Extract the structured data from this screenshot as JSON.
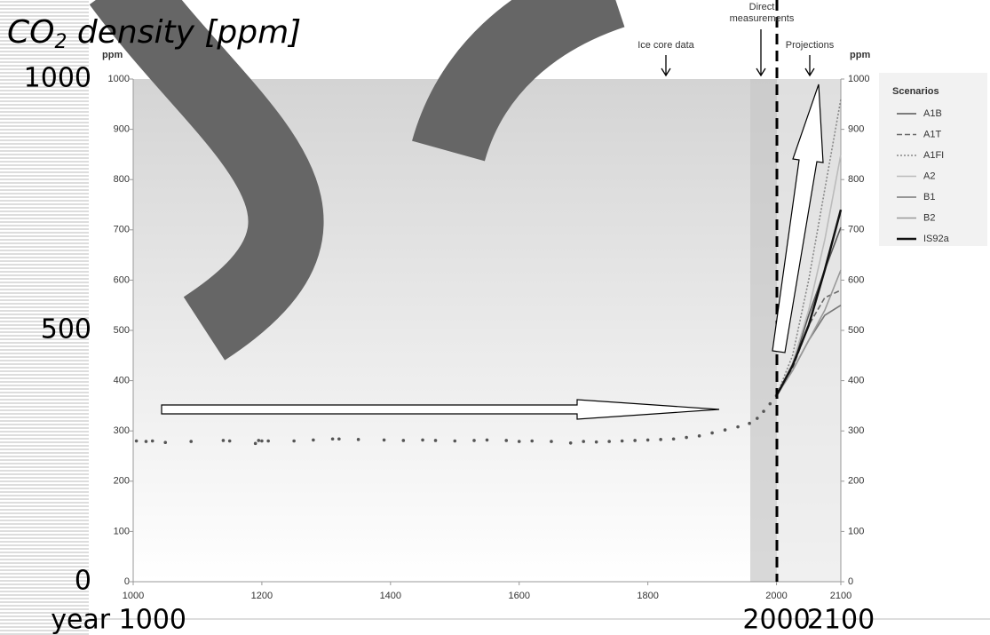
{
  "chart_data": {
    "type": "line",
    "title_parts": [
      "CO",
      "2",
      " density [ppm]"
    ],
    "unit_left": "ppm",
    "unit_right": "ppm",
    "annotations": {
      "ice_core": "Ice core data",
      "direct": [
        "Direct",
        "measurements"
      ],
      "projections": "Projections"
    },
    "legend_title": "Scenarios",
    "xlim": [
      1000,
      2100
    ],
    "ylim": [
      0,
      1000
    ],
    "xticks": [
      1000,
      1200,
      1400,
      1600,
      1800,
      2000,
      2100
    ],
    "yticks": [
      0,
      100,
      200,
      300,
      400,
      500,
      600,
      700,
      800,
      900,
      1000
    ],
    "overlay_yticks": [
      1000,
      500,
      0
    ],
    "overlay_xticks": [
      {
        "value": 1000,
        "label": "year 1000"
      },
      2000,
      2100
    ],
    "observations": {
      "color": "#555555",
      "x": [
        1005,
        1020,
        1030,
        1050,
        1090,
        1140,
        1150,
        1190,
        1195,
        1200,
        1210,
        1250,
        1280,
        1310,
        1320,
        1350,
        1390,
        1420,
        1450,
        1470,
        1500,
        1530,
        1550,
        1580,
        1600,
        1620,
        1650,
        1680,
        1700,
        1720,
        1740,
        1760,
        1780,
        1800,
        1820,
        1840,
        1860,
        1880,
        1900,
        1920,
        1940,
        1958,
        1970,
        1980,
        1990,
        2000
      ],
      "values": [
        280,
        279,
        280,
        277,
        279,
        281,
        280,
        275,
        281,
        280,
        280,
        280,
        282,
        284,
        284,
        283,
        282,
        281,
        282,
        281,
        280,
        281,
        282,
        281,
        279,
        280,
        279,
        276,
        279,
        278,
        279,
        280,
        281,
        282,
        283,
        284,
        287,
        290,
        296,
        302,
        308,
        315,
        325,
        339,
        354,
        370
      ]
    },
    "series": [
      {
        "name": "A1B",
        "color": "#555555",
        "dash": "solid",
        "x": [
          2000,
          2025,
          2050,
          2075,
          2100
        ],
        "values": [
          370,
          430,
          530,
          620,
          705
        ]
      },
      {
        "name": "A1T",
        "color": "#666666",
        "dash": "dashed",
        "x": [
          2000,
          2025,
          2050,
          2075,
          2100
        ],
        "values": [
          370,
          425,
          510,
          565,
          580
        ]
      },
      {
        "name": "A1FI",
        "color": "#888888",
        "dash": "dotted",
        "x": [
          2000,
          2025,
          2050,
          2075,
          2100
        ],
        "values": [
          370,
          450,
          600,
          780,
          960
        ]
      },
      {
        "name": "A2",
        "color": "#bbbbbb",
        "dash": "solid",
        "x": [
          2000,
          2025,
          2050,
          2075,
          2100
        ],
        "values": [
          370,
          435,
          540,
          680,
          850
        ]
      },
      {
        "name": "B1",
        "color": "#777777",
        "dash": "solid",
        "x": [
          2000,
          2025,
          2050,
          2075,
          2100
        ],
        "values": [
          370,
          420,
          480,
          530,
          550
        ]
      },
      {
        "name": "B2",
        "color": "#999999",
        "dash": "solid",
        "x": [
          2000,
          2025,
          2050,
          2075,
          2100
        ],
        "values": [
          370,
          420,
          480,
          540,
          620
        ]
      },
      {
        "name": "IS92a",
        "color": "#111111",
        "dash": "solid",
        "x": [
          2000,
          2025,
          2050,
          2075,
          2100
        ],
        "values": [
          370,
          430,
          510,
          620,
          740
        ]
      }
    ]
  }
}
